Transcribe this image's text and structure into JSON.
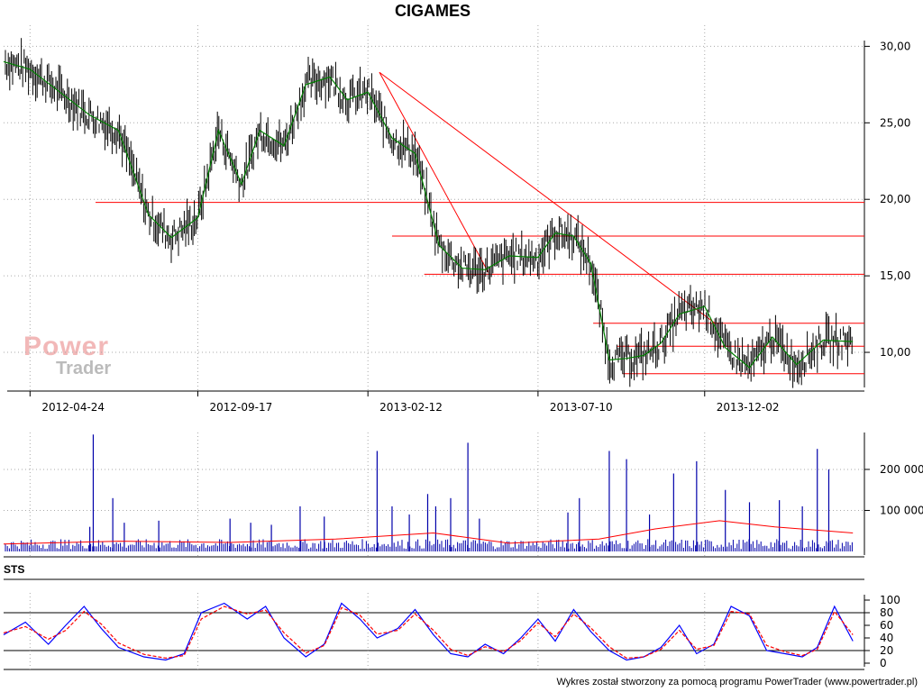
{
  "title": "CIGAMES",
  "footer": "Wykres został stworzony za pomocą programu PowerTrader (www.powertrader.pl)",
  "watermark": {
    "line1": "Power",
    "line2": "Trader"
  },
  "sts_label": "STS",
  "colors": {
    "price": "#000000",
    "ma": "#008000",
    "resistance": "#ff0000",
    "volume": "#0000aa",
    "vol_avg": "#ff0000",
    "sts_k": "#0000ff",
    "sts_d": "#ff0000"
  },
  "chart_data": [
    {
      "type": "line",
      "panel": "price",
      "title": "CIGAMES",
      "x_ticks": [
        "2012-04-24",
        "2012-09-17",
        "2013-02-12",
        "2013-07-10",
        "2013-12-02"
      ],
      "x_range": [
        "2012-04-01",
        "2014-04-20"
      ],
      "y_ticks": [
        "30,00",
        "25,00",
        "20,00",
        "15,00",
        "10,00"
      ],
      "ylim": [
        8,
        30.2
      ],
      "grid": true,
      "series": [
        {
          "x": [
            "2012-04-01",
            "2012-04-24",
            "2012-05-20",
            "2012-06-15",
            "2012-07-10",
            "2012-08-05",
            "2012-08-25",
            "2012-09-17",
            "2012-10-05",
            "2012-10-25",
            "2012-11-10",
            "2012-12-01",
            "2012-12-20",
            "2013-01-10",
            "2013-01-25",
            "2013-02-12",
            "2013-03-05",
            "2013-03-25",
            "2013-04-15",
            "2013-05-05",
            "2013-05-25",
            "2013-06-15",
            "2013-07-10",
            "2013-07-25",
            "2013-08-10",
            "2013-08-25",
            "2013-09-10",
            "2013-09-25",
            "2013-10-10",
            "2013-10-25",
            "2013-11-10",
            "2013-12-02",
            "2013-12-20",
            "2014-01-10",
            "2014-01-30",
            "2014-02-20",
            "2014-03-15",
            "2014-04-10"
          ],
          "y": [
            29,
            28.5,
            27,
            25.5,
            24.5,
            19,
            17.5,
            18.8,
            24.5,
            21,
            24.5,
            23.5,
            27.5,
            28,
            26.5,
            27,
            24,
            23,
            17,
            15.5,
            15.4,
            16.3,
            16.2,
            17.8,
            17.6,
            15.8,
            9.5,
            9.6,
            9.8,
            10.6,
            12.5,
            13,
            10.3,
            9,
            11,
            9.2,
            10.8,
            10.7
          ]
        }
      ],
      "lines": [
        {
          "name": "",
          "kind": "horizontal",
          "y": 19.8,
          "x_from": "2012-06-20",
          "x_to": "2014-04-20"
        },
        {
          "name": "",
          "kind": "horizontal",
          "y": 17.6,
          "x_from": "2013-03-05",
          "x_to": "2014-04-20"
        },
        {
          "name": "",
          "kind": "horizontal",
          "y": 15.1,
          "x_from": "2013-04-02",
          "x_to": "2014-04-20"
        },
        {
          "name": "",
          "kind": "horizontal",
          "y": 11.9,
          "x_from": "2013-08-27",
          "x_to": "2014-04-20"
        },
        {
          "name": "",
          "kind": "horizontal",
          "y": 10.4,
          "x_from": "2013-09-17",
          "x_to": "2014-04-20"
        },
        {
          "name": "",
          "kind": "horizontal",
          "y": 8.6,
          "x_from": "2013-09-22",
          "x_to": "2014-04-20"
        },
        {
          "name": "",
          "kind": "trend",
          "x": [
            "2013-02-22",
            "2013-05-28"
          ],
          "y": [
            28.3,
            15.2
          ]
        },
        {
          "name": "",
          "kind": "trend",
          "x": [
            "2013-02-22",
            "2013-12-11"
          ],
          "y": [
            28.3,
            11.9
          ]
        }
      ]
    },
    {
      "type": "bar",
      "panel": "volume",
      "y_ticks": [
        "200 000",
        "100 000"
      ],
      "ylim": [
        0,
        290000
      ],
      "x": [
        "2012-06-15",
        "2012-06-18",
        "2012-07-05",
        "2012-07-15",
        "2012-08-14",
        "2012-10-15",
        "2012-11-02",
        "2012-11-20",
        "2012-12-15",
        "2013-01-05",
        "2013-02-20",
        "2013-03-05",
        "2013-03-20",
        "2013-04-05",
        "2013-04-12",
        "2013-04-25",
        "2013-05-10",
        "2013-05-20",
        "2013-08-05",
        "2013-08-15",
        "2013-09-10",
        "2013-09-25",
        "2013-10-15",
        "2013-11-05",
        "2013-11-25",
        "2013-12-20",
        "2014-01-10",
        "2014-02-05",
        "2014-02-25",
        "2014-03-10",
        "2014-03-20"
      ],
      "values": [
        60000,
        285000,
        130000,
        70000,
        75000,
        80000,
        70000,
        65000,
        110000,
        85000,
        245000,
        110000,
        90000,
        140000,
        110000,
        130000,
        265000,
        80000,
        95000,
        130000,
        245000,
        225000,
        90000,
        190000,
        220000,
        150000,
        120000,
        125000,
        110000,
        250000,
        200000
      ],
      "baseline_value": 15000,
      "avg_series": {
        "name": "",
        "x": [
          "2012-04-01",
          "2012-07-10",
          "2012-10-15",
          "2013-01-15",
          "2013-04-10",
          "2013-06-15",
          "2013-09-01",
          "2013-10-20",
          "2013-12-15",
          "2014-02-01",
          "2014-04-10"
        ],
        "values": [
          18000,
          25000,
          22000,
          30000,
          45000,
          20000,
          30000,
          55000,
          75000,
          60000,
          45000
        ]
      }
    },
    {
      "type": "line",
      "panel": "oscillator",
      "title": "STS",
      "y_ticks": [
        "100",
        "80",
        "60",
        "40",
        "20",
        "0"
      ],
      "ylim": [
        0,
        100
      ],
      "reference_lines": [
        20,
        80
      ],
      "series": [
        {
          "name": "",
          "x": [
            "2012-04-01",
            "2012-04-20",
            "2012-05-10",
            "2012-05-25",
            "2012-06-10",
            "2012-06-25",
            "2012-07-10",
            "2012-08-01",
            "2012-08-20",
            "2012-09-05",
            "2012-09-20",
            "2012-10-10",
            "2012-10-30",
            "2012-11-15",
            "2012-12-01",
            "2012-12-20",
            "2013-01-05",
            "2013-01-20",
            "2013-02-05",
            "2013-02-20",
            "2013-03-10",
            "2013-03-25",
            "2013-04-10",
            "2013-04-25",
            "2013-05-10",
            "2013-05-25",
            "2013-06-10",
            "2013-06-25",
            "2013-07-10",
            "2013-07-25",
            "2013-08-10",
            "2013-08-25",
            "2013-09-10",
            "2013-09-25",
            "2013-10-10",
            "2013-10-25",
            "2013-11-10",
            "2013-11-25",
            "2013-12-10",
            "2013-12-25",
            "2014-01-10",
            "2014-01-25",
            "2014-02-10",
            "2014-02-25",
            "2014-03-10",
            "2014-03-25",
            "2014-04-10"
          ],
          "values": [
            45,
            65,
            30,
            60,
            90,
            55,
            25,
            10,
            5,
            15,
            80,
            95,
            70,
            90,
            40,
            10,
            30,
            95,
            70,
            40,
            55,
            85,
            45,
            15,
            10,
            30,
            15,
            40,
            70,
            35,
            85,
            50,
            20,
            5,
            10,
            25,
            60,
            15,
            30,
            90,
            75,
            20,
            15,
            10,
            25,
            90,
            35
          ]
        },
        {
          "name": "",
          "x": [
            "2012-04-01",
            "2012-04-20",
            "2012-05-10",
            "2012-05-25",
            "2012-06-10",
            "2012-06-25",
            "2012-07-10",
            "2012-08-01",
            "2012-08-20",
            "2012-09-05",
            "2012-09-20",
            "2012-10-10",
            "2012-10-30",
            "2012-11-15",
            "2012-12-01",
            "2012-12-20",
            "2013-01-05",
            "2013-01-20",
            "2013-02-05",
            "2013-02-20",
            "2013-03-10",
            "2013-03-25",
            "2013-04-10",
            "2013-04-25",
            "2013-05-10",
            "2013-05-25",
            "2013-06-10",
            "2013-06-25",
            "2013-07-10",
            "2013-07-25",
            "2013-08-10",
            "2013-08-25",
            "2013-09-10",
            "2013-09-25",
            "2013-10-10",
            "2013-10-25",
            "2013-11-10",
            "2013-11-25",
            "2013-12-10",
            "2013-12-25",
            "2014-01-10",
            "2014-01-25",
            "2014-02-10",
            "2014-02-25",
            "2014-03-10",
            "2014-03-25",
            "2014-04-10"
          ],
          "values": [
            48,
            58,
            38,
            52,
            82,
            62,
            32,
            14,
            8,
            12,
            70,
            90,
            78,
            84,
            48,
            16,
            28,
            88,
            76,
            46,
            52,
            78,
            52,
            22,
            12,
            26,
            18,
            36,
            64,
            42,
            78,
            56,
            26,
            8,
            10,
            22,
            52,
            22,
            28,
            82,
            78,
            28,
            18,
            12,
            22,
            82,
            45
          ]
        }
      ]
    }
  ]
}
